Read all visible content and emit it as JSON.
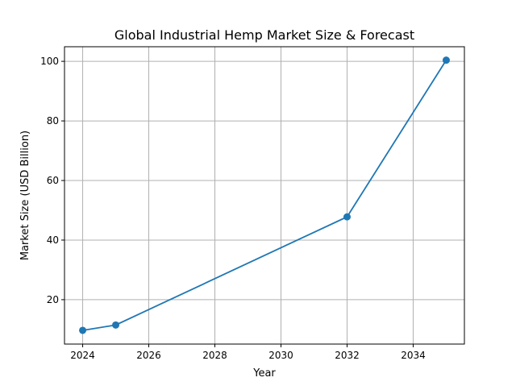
{
  "chart_data": {
    "type": "line",
    "title": "Global Industrial Hemp Market Size & Forecast",
    "xlabel": "Year",
    "ylabel": "Market Size (USD Billion)",
    "x": [
      2024,
      2025,
      2032,
      2035
    ],
    "series": [
      {
        "values": [
          9.7,
          11.5,
          47.8,
          100.4
        ],
        "color": "#1f77b4",
        "marker": "circle"
      }
    ],
    "xlim": [
      2023.45,
      2035.55
    ],
    "ylim": [
      5.1,
      104.9
    ],
    "xticks": [
      2024,
      2026,
      2028,
      2030,
      2032,
      2034
    ],
    "yticks": [
      20,
      40,
      60,
      80,
      100
    ],
    "grid": true
  }
}
